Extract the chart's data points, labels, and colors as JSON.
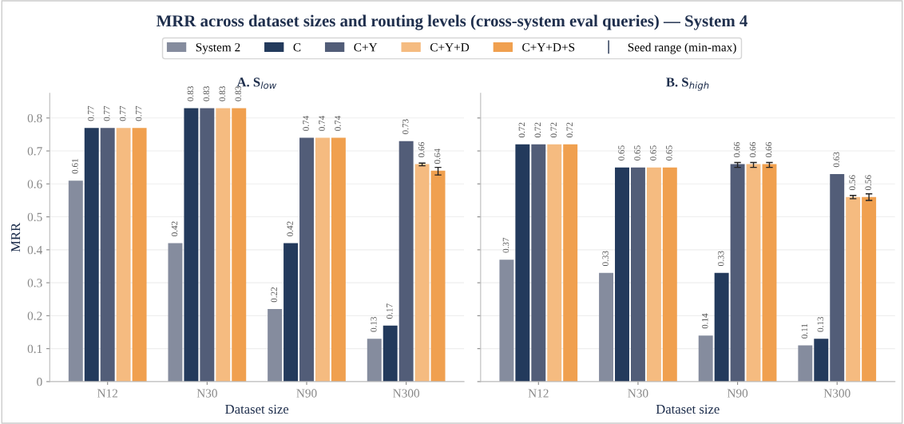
{
  "chart_data": [
    {
      "type": "bar",
      "title": "MRR across dataset sizes and routing levels (cross-system eval queries) — System 4",
      "subtitle": "A. S$_{low}$",
      "xlabel": "Dataset size",
      "ylabel": "MRR",
      "categories": [
        "N12",
        "N30",
        "N90",
        "N300"
      ],
      "ylim": [
        0,
        0.875
      ],
      "yticks": [
        0,
        0.1,
        0.2,
        0.3,
        0.4,
        0.5,
        0.6,
        0.7,
        0.8
      ],
      "grid": "y",
      "legend": "top",
      "data_labels": true,
      "annotations": [
        "Seed range (min-max)"
      ],
      "series": [
        {
          "name": "System 2",
          "color": "#858c9e",
          "values": [
            0.61,
            0.42,
            0.22,
            0.13
          ]
        },
        {
          "name": "C",
          "color": "#233a5c",
          "values": [
            0.77,
            0.83,
            0.42,
            0.17
          ]
        },
        {
          "name": "C+Y",
          "color": "#525d78",
          "values": [
            0.77,
            0.83,
            0.74,
            0.73
          ]
        },
        {
          "name": "C+Y+D",
          "color": "#f5bb80",
          "values": [
            0.77,
            0.83,
            0.74,
            0.66
          ],
          "errors": [
            null,
            null,
            null,
            [
              0.655,
              0.663
            ]
          ]
        },
        {
          "name": "C+Y+D+S",
          "color": "#f0a04f",
          "values": [
            0.77,
            0.83,
            0.74,
            0.64
          ],
          "errors": [
            null,
            null,
            null,
            [
              0.627,
              0.65
            ]
          ]
        }
      ]
    },
    {
      "type": "bar",
      "subtitle": "B. S$_{high}$",
      "xlabel": "Dataset size",
      "categories": [
        "N12",
        "N30",
        "N90",
        "N300"
      ],
      "ylim": [
        0,
        0.875
      ],
      "tick_labels": "x",
      "grid": "y",
      "data_labels": true,
      "series": [
        {
          "color": "#858c9e",
          "values": [
            0.37,
            0.33,
            0.14,
            0.11
          ]
        },
        {
          "color": "#233a5c",
          "values": [
            0.72,
            0.65,
            0.33,
            0.13
          ]
        },
        {
          "color": "#525d78",
          "values": [
            0.72,
            0.65,
            0.66,
            0.63
          ],
          "errors": [
            null,
            null,
            [
              0.65,
              0.665
            ],
            null
          ]
        },
        {
          "color": "#f5bb80",
          "values": [
            0.72,
            0.65,
            0.66,
            0.56
          ],
          "errors": [
            null,
            null,
            [
              0.65,
              0.665
            ],
            [
              0.555,
              0.565
            ]
          ]
        },
        {
          "color": "#f0a04f",
          "values": [
            0.72,
            0.65,
            0.66,
            0.56
          ],
          "errors": [
            null,
            null,
            [
              0.65,
              0.665
            ],
            [
              0.55,
              0.57
            ]
          ]
        }
      ]
    }
  ]
}
